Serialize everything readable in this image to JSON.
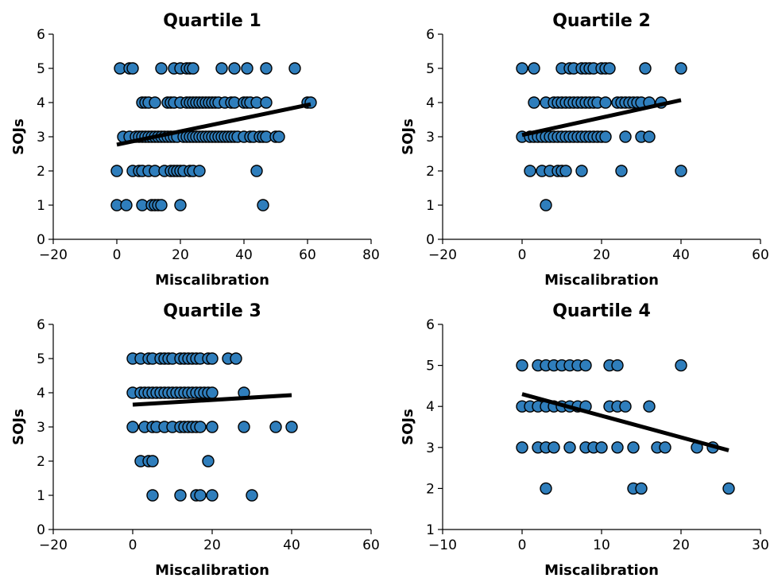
{
  "colors": {
    "point_fill": "#2f7ebc",
    "point_edge": "#000000",
    "fit_line": "#000000"
  },
  "chart_data": [
    {
      "type": "scatter",
      "title": "Quartile 1",
      "xlabel": "Miscalibration",
      "ylabel": "SOJs",
      "xlim": [
        -20,
        80
      ],
      "ylim": [
        0,
        6
      ],
      "xticks": [
        -20,
        0,
        20,
        40,
        60,
        80
      ],
      "yticks": [
        0,
        1,
        2,
        3,
        4,
        5,
        6
      ],
      "grid": false,
      "trend_line": {
        "x": [
          0,
          61
        ],
        "y": [
          2.77,
          3.95
        ]
      },
      "points": [
        [
          0,
          1
        ],
        [
          3,
          1
        ],
        [
          8,
          1
        ],
        [
          11,
          1
        ],
        [
          12,
          1
        ],
        [
          13,
          1
        ],
        [
          14,
          1
        ],
        [
          20,
          1
        ],
        [
          46,
          1
        ],
        [
          0,
          2
        ],
        [
          5,
          2
        ],
        [
          7,
          2
        ],
        [
          8,
          2
        ],
        [
          10,
          2
        ],
        [
          12,
          2
        ],
        [
          15,
          2
        ],
        [
          17,
          2
        ],
        [
          18,
          2
        ],
        [
          19,
          2
        ],
        [
          20,
          2
        ],
        [
          21,
          2
        ],
        [
          23,
          2
        ],
        [
          24,
          2
        ],
        [
          26,
          2
        ],
        [
          44,
          2
        ],
        [
          2,
          3
        ],
        [
          4,
          3
        ],
        [
          6,
          3
        ],
        [
          7,
          3
        ],
        [
          8,
          3
        ],
        [
          9,
          3
        ],
        [
          10,
          3
        ],
        [
          11,
          3
        ],
        [
          12,
          3
        ],
        [
          13,
          3
        ],
        [
          14,
          3
        ],
        [
          15,
          3
        ],
        [
          16,
          3
        ],
        [
          17,
          3
        ],
        [
          18,
          3
        ],
        [
          19,
          3
        ],
        [
          21,
          3
        ],
        [
          22,
          3
        ],
        [
          23,
          3
        ],
        [
          24,
          3
        ],
        [
          25,
          3
        ],
        [
          26,
          3
        ],
        [
          27,
          3
        ],
        [
          28,
          3
        ],
        [
          29,
          3
        ],
        [
          30,
          3
        ],
        [
          31,
          3
        ],
        [
          32,
          3
        ],
        [
          33,
          3
        ],
        [
          34,
          3
        ],
        [
          35,
          3
        ],
        [
          36,
          3
        ],
        [
          37,
          3
        ],
        [
          38,
          3
        ],
        [
          40,
          3
        ],
        [
          42,
          3
        ],
        [
          43,
          3
        ],
        [
          45,
          3
        ],
        [
          46,
          3
        ],
        [
          47,
          3
        ],
        [
          50,
          3
        ],
        [
          51,
          3
        ],
        [
          8,
          4
        ],
        [
          9,
          4
        ],
        [
          10,
          4
        ],
        [
          12,
          4
        ],
        [
          16,
          4
        ],
        [
          17,
          4
        ],
        [
          18,
          4
        ],
        [
          20,
          4
        ],
        [
          22,
          4
        ],
        [
          23,
          4
        ],
        [
          24,
          4
        ],
        [
          25,
          4
        ],
        [
          26,
          4
        ],
        [
          27,
          4
        ],
        [
          28,
          4
        ],
        [
          29,
          4
        ],
        [
          30,
          4
        ],
        [
          31,
          4
        ],
        [
          32,
          4
        ],
        [
          34,
          4
        ],
        [
          36,
          4
        ],
        [
          37,
          4
        ],
        [
          40,
          4
        ],
        [
          41,
          4
        ],
        [
          42,
          4
        ],
        [
          44,
          4
        ],
        [
          47,
          4
        ],
        [
          60,
          4
        ],
        [
          61,
          4
        ],
        [
          1,
          5
        ],
        [
          4,
          5
        ],
        [
          5,
          5
        ],
        [
          14,
          5
        ],
        [
          18,
          5
        ],
        [
          20,
          5
        ],
        [
          22,
          5
        ],
        [
          23,
          5
        ],
        [
          24,
          5
        ],
        [
          33,
          5
        ],
        [
          37,
          5
        ],
        [
          41,
          5
        ],
        [
          47,
          5
        ],
        [
          56,
          5
        ]
      ]
    },
    {
      "type": "scatter",
      "title": "Quartile 2",
      "xlabel": "Miscalibration",
      "ylabel": "SOJs",
      "xlim": [
        -20,
        60
      ],
      "ylim": [
        0,
        6
      ],
      "xticks": [
        -20,
        0,
        20,
        40,
        60
      ],
      "yticks": [
        0,
        1,
        2,
        3,
        4,
        5,
        6
      ],
      "grid": false,
      "trend_line": {
        "x": [
          0,
          40
        ],
        "y": [
          3.05,
          4.07
        ]
      },
      "points": [
        [
          6,
          1
        ],
        [
          2,
          2
        ],
        [
          5,
          2
        ],
        [
          7,
          2
        ],
        [
          9,
          2
        ],
        [
          10,
          2
        ],
        [
          11,
          2
        ],
        [
          15,
          2
        ],
        [
          25,
          2
        ],
        [
          40,
          2
        ],
        [
          0,
          3
        ],
        [
          2,
          3
        ],
        [
          3,
          3
        ],
        [
          4,
          3
        ],
        [
          5,
          3
        ],
        [
          6,
          3
        ],
        [
          7,
          3
        ],
        [
          8,
          3
        ],
        [
          9,
          3
        ],
        [
          10,
          3
        ],
        [
          11,
          3
        ],
        [
          12,
          3
        ],
        [
          13,
          3
        ],
        [
          14,
          3
        ],
        [
          15,
          3
        ],
        [
          16,
          3
        ],
        [
          17,
          3
        ],
        [
          18,
          3
        ],
        [
          19,
          3
        ],
        [
          20,
          3
        ],
        [
          21,
          3
        ],
        [
          26,
          3
        ],
        [
          30,
          3
        ],
        [
          32,
          3
        ],
        [
          3,
          4
        ],
        [
          6,
          4
        ],
        [
          8,
          4
        ],
        [
          9,
          4
        ],
        [
          10,
          4
        ],
        [
          11,
          4
        ],
        [
          12,
          4
        ],
        [
          13,
          4
        ],
        [
          14,
          4
        ],
        [
          15,
          4
        ],
        [
          16,
          4
        ],
        [
          17,
          4
        ],
        [
          18,
          4
        ],
        [
          19,
          4
        ],
        [
          21,
          4
        ],
        [
          24,
          4
        ],
        [
          25,
          4
        ],
        [
          26,
          4
        ],
        [
          27,
          4
        ],
        [
          28,
          4
        ],
        [
          29,
          4
        ],
        [
          30,
          4
        ],
        [
          32,
          4
        ],
        [
          35,
          4
        ],
        [
          0,
          5
        ],
        [
          3,
          5
        ],
        [
          10,
          5
        ],
        [
          12,
          5
        ],
        [
          13,
          5
        ],
        [
          15,
          5
        ],
        [
          16,
          5
        ],
        [
          17,
          5
        ],
        [
          18,
          5
        ],
        [
          20,
          5
        ],
        [
          21,
          5
        ],
        [
          22,
          5
        ],
        [
          31,
          5
        ],
        [
          40,
          5
        ]
      ]
    },
    {
      "type": "scatter",
      "title": "Quartile 3",
      "xlabel": "Miscalibration",
      "ylabel": "SOJs",
      "xlim": [
        -20,
        60
      ],
      "ylim": [
        0,
        6
      ],
      "xticks": [
        -20,
        0,
        20,
        40,
        60
      ],
      "yticks": [
        0,
        1,
        2,
        3,
        4,
        5,
        6
      ],
      "grid": false,
      "trend_line": {
        "x": [
          0,
          40
        ],
        "y": [
          3.65,
          3.93
        ]
      },
      "points": [
        [
          5,
          1
        ],
        [
          12,
          1
        ],
        [
          16,
          1
        ],
        [
          17,
          1
        ],
        [
          20,
          1
        ],
        [
          30,
          1
        ],
        [
          2,
          2
        ],
        [
          4,
          2
        ],
        [
          5,
          2
        ],
        [
          19,
          2
        ],
        [
          0,
          3
        ],
        [
          3,
          3
        ],
        [
          5,
          3
        ],
        [
          6,
          3
        ],
        [
          8,
          3
        ],
        [
          10,
          3
        ],
        [
          12,
          3
        ],
        [
          13,
          3
        ],
        [
          14,
          3
        ],
        [
          15,
          3
        ],
        [
          16,
          3
        ],
        [
          17,
          3
        ],
        [
          20,
          3
        ],
        [
          28,
          3
        ],
        [
          36,
          3
        ],
        [
          40,
          3
        ],
        [
          0,
          4
        ],
        [
          2,
          4
        ],
        [
          3,
          4
        ],
        [
          4,
          4
        ],
        [
          5,
          4
        ],
        [
          6,
          4
        ],
        [
          7,
          4
        ],
        [
          8,
          4
        ],
        [
          9,
          4
        ],
        [
          10,
          4
        ],
        [
          11,
          4
        ],
        [
          12,
          4
        ],
        [
          13,
          4
        ],
        [
          14,
          4
        ],
        [
          15,
          4
        ],
        [
          16,
          4
        ],
        [
          17,
          4
        ],
        [
          18,
          4
        ],
        [
          19,
          4
        ],
        [
          20,
          4
        ],
        [
          28,
          4
        ],
        [
          0,
          5
        ],
        [
          2,
          5
        ],
        [
          4,
          5
        ],
        [
          5,
          5
        ],
        [
          7,
          5
        ],
        [
          8,
          5
        ],
        [
          9,
          5
        ],
        [
          10,
          5
        ],
        [
          12,
          5
        ],
        [
          13,
          5
        ],
        [
          14,
          5
        ],
        [
          15,
          5
        ],
        [
          16,
          5
        ],
        [
          17,
          5
        ],
        [
          19,
          5
        ],
        [
          20,
          5
        ],
        [
          24,
          5
        ],
        [
          26,
          5
        ]
      ]
    },
    {
      "type": "scatter",
      "title": "Quartile 4",
      "xlabel": "Miscalibration",
      "ylabel": "SOJs",
      "xlim": [
        -10,
        30
      ],
      "ylim": [
        1,
        6
      ],
      "xticks": [
        -10,
        0,
        10,
        20,
        30
      ],
      "yticks": [
        1,
        2,
        3,
        4,
        5,
        6
      ],
      "grid": false,
      "trend_line": {
        "x": [
          0,
          26
        ],
        "y": [
          4.3,
          2.93
        ]
      },
      "points": [
        [
          3,
          2
        ],
        [
          14,
          2
        ],
        [
          15,
          2
        ],
        [
          26,
          2
        ],
        [
          0,
          3
        ],
        [
          2,
          3
        ],
        [
          3,
          3
        ],
        [
          4,
          3
        ],
        [
          6,
          3
        ],
        [
          8,
          3
        ],
        [
          9,
          3
        ],
        [
          10,
          3
        ],
        [
          12,
          3
        ],
        [
          14,
          3
        ],
        [
          17,
          3
        ],
        [
          18,
          3
        ],
        [
          22,
          3
        ],
        [
          24,
          3
        ],
        [
          0,
          4
        ],
        [
          1,
          4
        ],
        [
          2,
          4
        ],
        [
          3,
          4
        ],
        [
          4,
          4
        ],
        [
          5,
          4
        ],
        [
          6,
          4
        ],
        [
          7,
          4
        ],
        [
          8,
          4
        ],
        [
          11,
          4
        ],
        [
          12,
          4
        ],
        [
          13,
          4
        ],
        [
          16,
          4
        ],
        [
          0,
          5
        ],
        [
          2,
          5
        ],
        [
          3,
          5
        ],
        [
          4,
          5
        ],
        [
          5,
          5
        ],
        [
          6,
          5
        ],
        [
          7,
          5
        ],
        [
          8,
          5
        ],
        [
          11,
          5
        ],
        [
          12,
          5
        ],
        [
          20,
          5
        ]
      ]
    }
  ]
}
